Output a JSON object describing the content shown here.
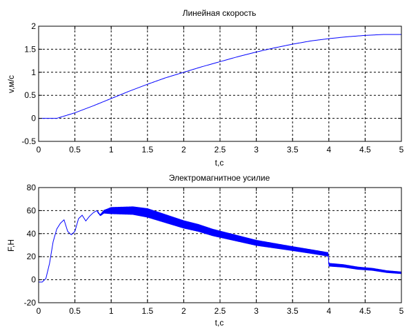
{
  "chart_data": [
    {
      "type": "line",
      "title": "Линейная скорость",
      "xlabel": "t,c",
      "ylabel": "v,м/с",
      "xlim": [
        0,
        5
      ],
      "ylim": [
        -0.5,
        2
      ],
      "xticks": [
        "0",
        "0.5",
        "1",
        "1.5",
        "2",
        "2.5",
        "3",
        "3.5",
        "4",
        "4.5",
        "5"
      ],
      "yticks": [
        "-0.5",
        "0",
        "0.5",
        "1",
        "1.5",
        "2"
      ],
      "grid": true,
      "series": [
        {
          "color": "#0000ff",
          "x": [
            0,
            0.25,
            0.5,
            0.75,
            1.0,
            1.25,
            1.5,
            1.75,
            2.0,
            2.25,
            2.5,
            2.75,
            3.0,
            3.25,
            3.5,
            3.75,
            4.0,
            4.25,
            4.5,
            4.75,
            5.0
          ],
          "y": [
            0,
            0.0,
            0.12,
            0.27,
            0.43,
            0.59,
            0.74,
            0.88,
            1.0,
            1.12,
            1.23,
            1.34,
            1.44,
            1.53,
            1.61,
            1.68,
            1.73,
            1.77,
            1.8,
            1.82,
            1.82
          ]
        }
      ]
    },
    {
      "type": "line",
      "title": "Электромагнитное усилие",
      "xlabel": "t,c",
      "ylabel": "F,H",
      "xlim": [
        0,
        5
      ],
      "ylim": [
        -20,
        80
      ],
      "xticks": [
        "0",
        "0.5",
        "1",
        "1.5",
        "2",
        "2.5",
        "3",
        "3.5",
        "4",
        "4.5",
        "5"
      ],
      "yticks": [
        "-20",
        "0",
        "20",
        "40",
        "60",
        "80"
      ],
      "grid": true,
      "series": [
        {
          "color": "#0000ff",
          "envelope_x": [
            0,
            0.05,
            0.1,
            0.15,
            0.2,
            0.25,
            0.3,
            0.35,
            0.4,
            0.45,
            0.5,
            0.55,
            0.6,
            0.65,
            0.7,
            0.75,
            0.8,
            0.85,
            0.9,
            1.0,
            1.1,
            1.2,
            1.3,
            1.4,
            1.5,
            1.6,
            1.8,
            2.0,
            2.2,
            2.4,
            2.6,
            2.8,
            3.0,
            3.2,
            3.4,
            3.6,
            3.8,
            3.99,
            4.0,
            4.2,
            4.4,
            4.6,
            4.8,
            5.0
          ],
          "envelope_y": [
            -2,
            -2,
            1,
            14,
            33,
            44,
            49,
            52,
            42,
            39,
            42,
            53,
            56,
            51,
            55,
            58,
            60,
            56,
            59,
            60,
            60,
            60,
            60,
            59,
            58,
            56,
            52,
            48,
            45,
            41,
            38,
            35,
            32,
            30,
            28,
            26,
            24,
            22,
            13,
            12,
            10,
            9,
            7,
            6
          ],
          "ripple_amplitude_x": [
            0,
            0.8,
            1.0,
            1.5,
            2.0,
            2.5,
            3.0,
            3.5,
            3.99,
            4.0,
            4.5,
            5.0
          ],
          "ripple_amplitude_y": [
            0,
            0,
            3,
            4,
            3.5,
            3,
            2.5,
            2,
            1.8,
            1.5,
            1.2,
            1.0
          ]
        }
      ]
    }
  ]
}
